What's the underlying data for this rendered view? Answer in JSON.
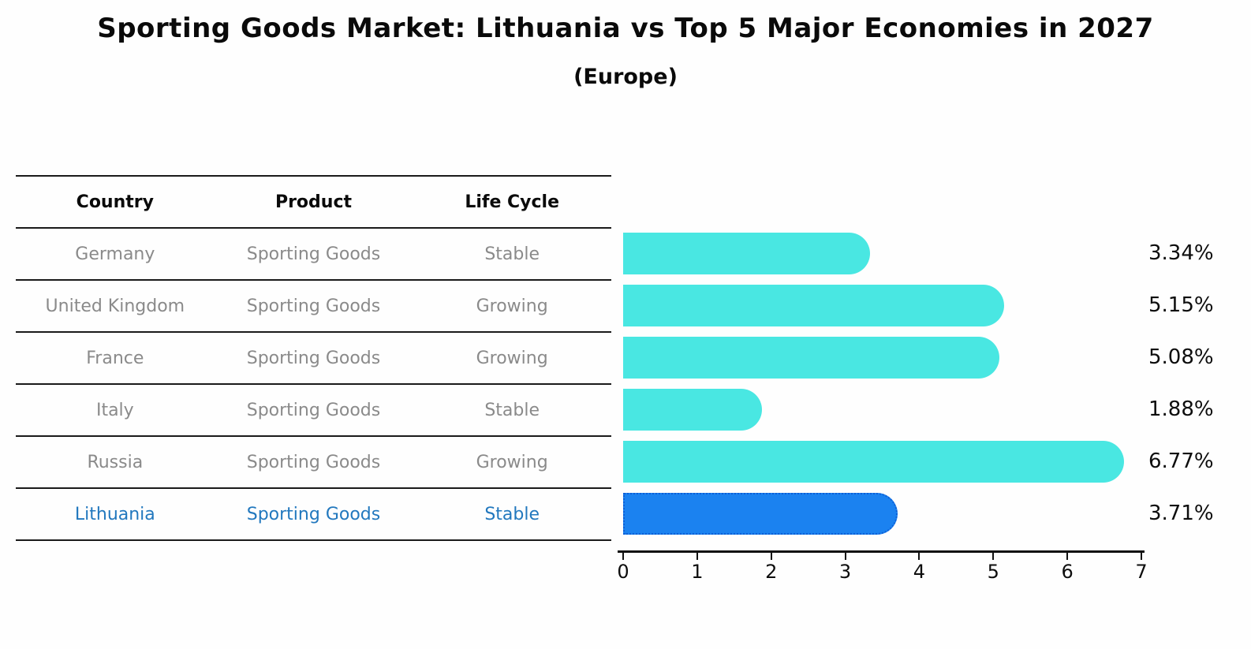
{
  "title": "Sporting Goods Market: Lithuania vs Top 5 Major Economies in 2027",
  "subtitle": "(Europe)",
  "table": {
    "headers": {
      "country": "Country",
      "product": "Product",
      "life_cycle": "Life Cycle"
    },
    "rows": [
      {
        "country": "Germany",
        "product": "Sporting Goods",
        "life_cycle": "Stable",
        "highlight": false
      },
      {
        "country": "United Kingdom",
        "product": "Sporting Goods",
        "life_cycle": "Growing",
        "highlight": false
      },
      {
        "country": "France",
        "product": "Sporting Goods",
        "life_cycle": "Growing",
        "highlight": false
      },
      {
        "country": "Italy",
        "product": "Sporting Goods",
        "life_cycle": "Stable",
        "highlight": false
      },
      {
        "country": "Russia",
        "product": "Sporting Goods",
        "life_cycle": "Growing",
        "highlight": false
      },
      {
        "country": "Lithuania",
        "product": "Sporting Goods",
        "life_cycle": "Stable",
        "highlight": true
      }
    ]
  },
  "chart_data": {
    "type": "bar",
    "orientation": "horizontal",
    "title": "Sporting Goods Market: Lithuania vs Top 5 Major Economies in 2027 (Europe)",
    "categories": [
      "Germany",
      "United Kingdom",
      "France",
      "Italy",
      "Russia",
      "Lithuania"
    ],
    "values": [
      3.34,
      5.15,
      5.08,
      1.88,
      6.77,
      3.71
    ],
    "value_labels": [
      "3.34%",
      "5.15%",
      "5.08%",
      "1.88%",
      "6.77%",
      "3.71%"
    ],
    "xlim": [
      0,
      7
    ],
    "x_ticks": [
      0,
      1,
      2,
      3,
      4,
      5,
      6,
      7
    ],
    "grid": false,
    "legend": false,
    "bar_color": "#49e7e2",
    "highlight_color": "#1b82f0",
    "highlight_border_color": "#0d5fd6",
    "highlight_index": 5,
    "highlight_text_color": "#2278be"
  }
}
